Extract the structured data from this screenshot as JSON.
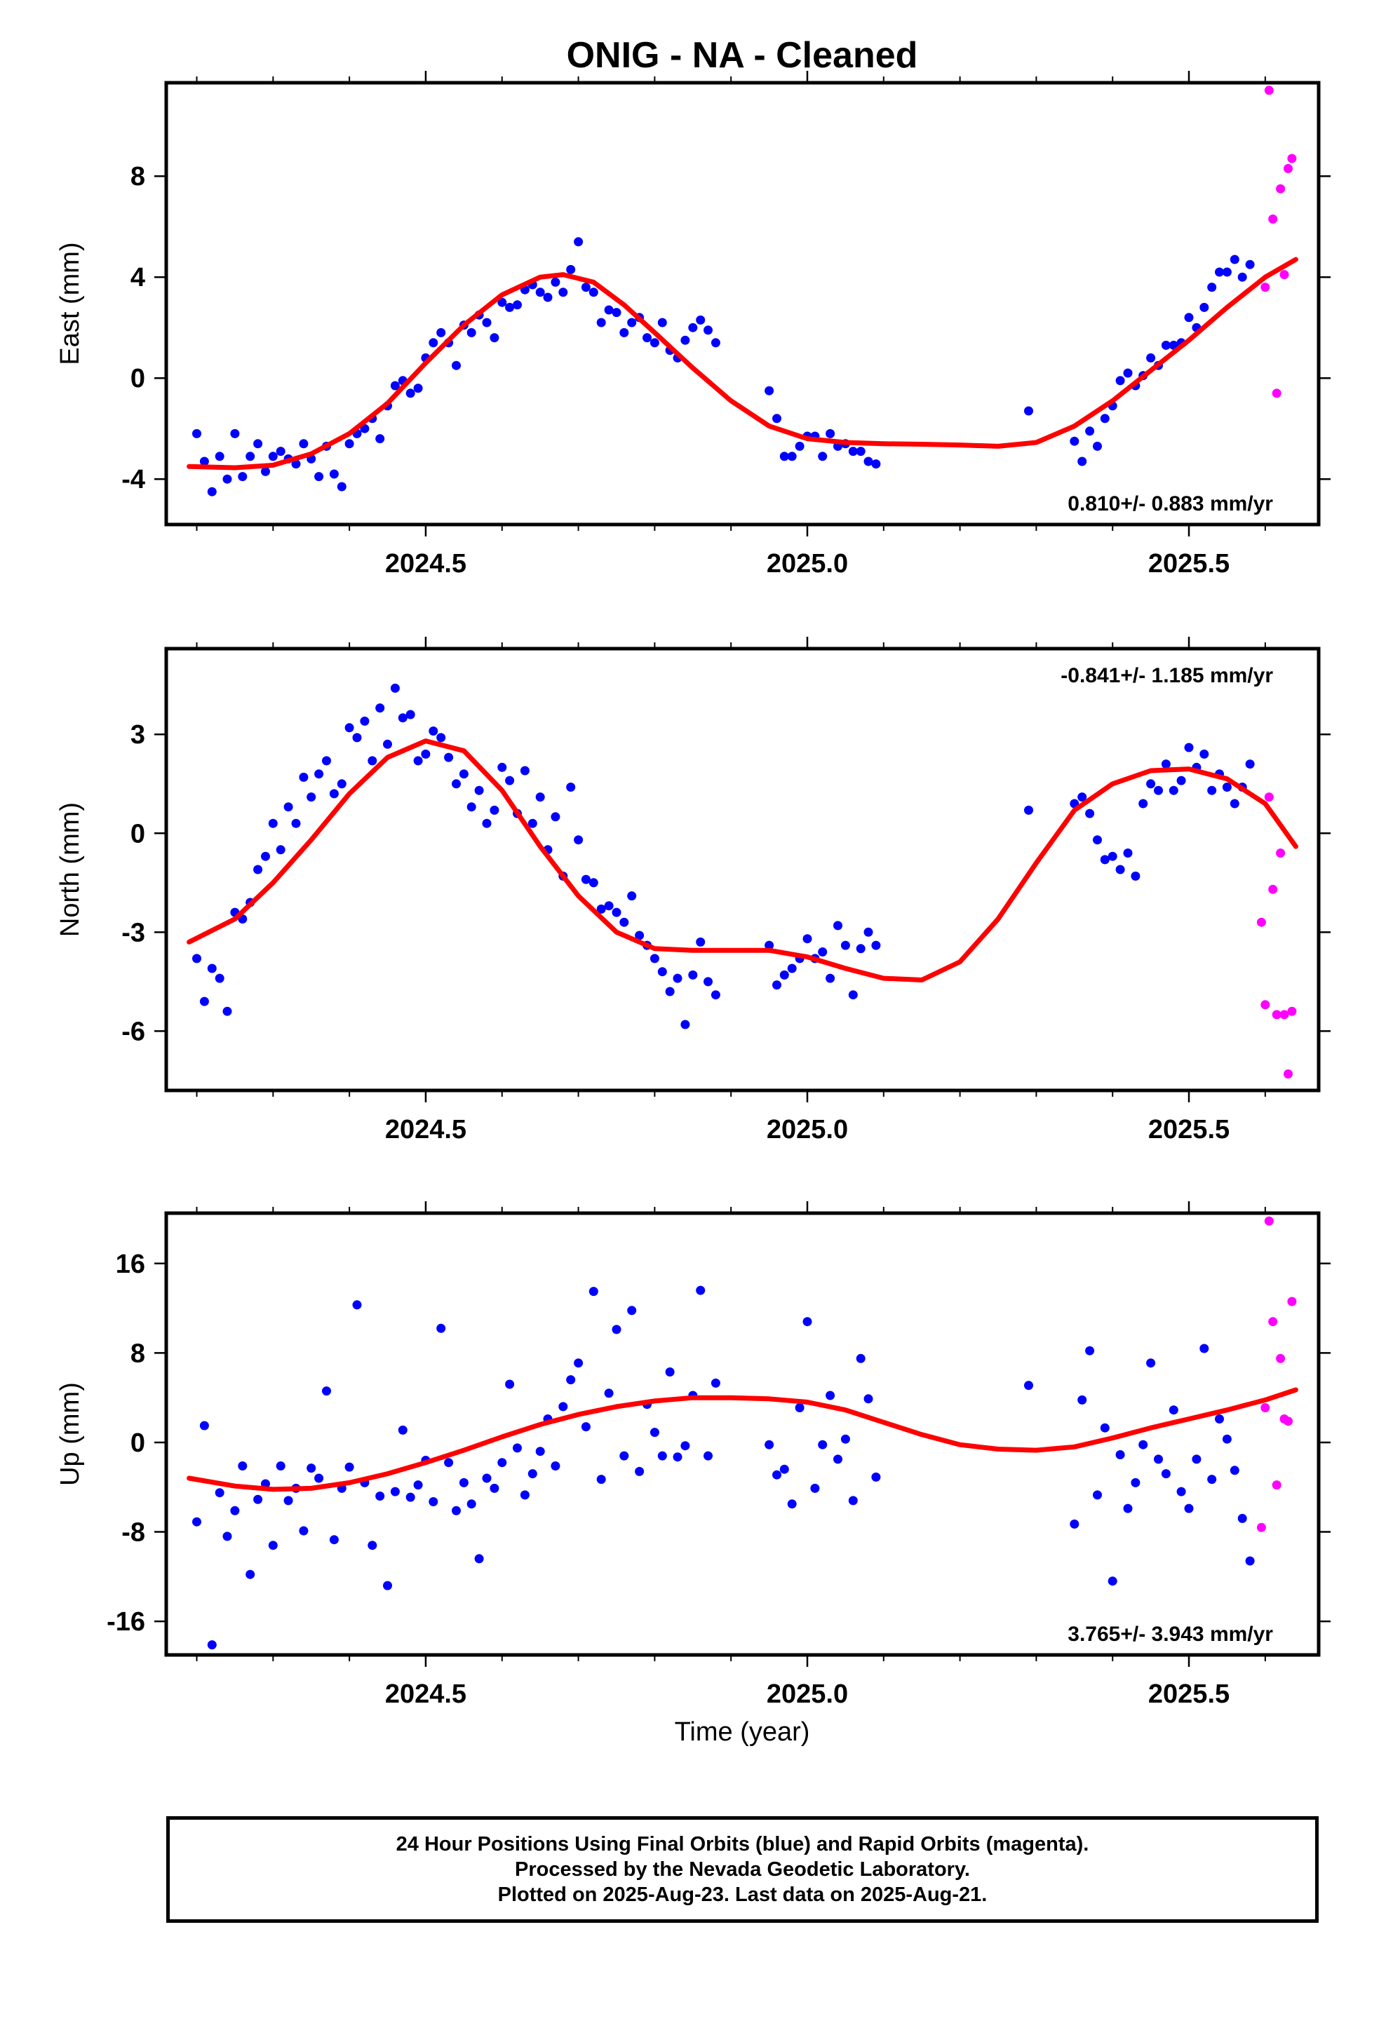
{
  "figure": {
    "title": "ONIG  - NA - Cleaned",
    "xlabel": "Time (year)",
    "colors": {
      "final": "#0000ff",
      "rapid": "#ff00ff",
      "model": "#ff0000",
      "axes": "#000000"
    }
  },
  "footer": {
    "line1": "24 Hour Positions Using Final Orbits (blue) and Rapid Orbits (magenta).",
    "line2": "Processed by the Nevada Geodetic Laboratory.",
    "line3": "Plotted on 2025-Aug-23. Last data on 2025-Aug-21."
  },
  "chart_data": [
    {
      "type": "scatter",
      "title": "ONIG  - NA - Cleaned",
      "ylabel": "East (mm)",
      "xlim": [
        2024.16,
        2025.67
      ],
      "ylim": [
        -5.8,
        11.7
      ],
      "xticks": [
        "2024.5",
        "2025.0",
        "2025.5"
      ],
      "yticks": [
        "-4",
        "0",
        "4",
        "8"
      ],
      "rate_text": "0.810+/- 0.883 mm/yr",
      "rate_position": "bottom-right",
      "series": [
        {
          "kind": "final",
          "x": [
            2024.2,
            2024.21,
            2024.22,
            2024.23,
            2024.24,
            2024.25,
            2024.26,
            2024.27,
            2024.28,
            2024.29,
            2024.3,
            2024.31,
            2024.32,
            2024.33,
            2024.34,
            2024.35,
            2024.36,
            2024.37,
            2024.38,
            2024.39,
            2024.4,
            2024.41,
            2024.42,
            2024.43,
            2024.44,
            2024.45,
            2024.46,
            2024.47,
            2024.48,
            2024.49,
            2024.5,
            2024.51,
            2024.52,
            2024.53,
            2024.54,
            2024.55,
            2024.56,
            2024.57,
            2024.58,
            2024.59,
            2024.6,
            2024.61,
            2024.62,
            2024.63,
            2024.64,
            2024.65,
            2024.66,
            2024.67,
            2024.68,
            2024.69,
            2024.7,
            2024.71,
            2024.72,
            2024.73,
            2024.74,
            2024.75,
            2024.76,
            2024.77,
            2024.78,
            2024.79,
            2024.8,
            2024.81,
            2024.82,
            2024.83,
            2024.84,
            2024.85,
            2024.86,
            2024.87,
            2024.88,
            2024.95,
            2024.96,
            2024.97,
            2024.98,
            2024.99,
            2025.0,
            2025.01,
            2025.02,
            2025.03,
            2025.04,
            2025.05,
            2025.06,
            2025.07,
            2025.08,
            2025.09,
            2025.29,
            2025.35,
            2025.36,
            2025.37,
            2025.38,
            2025.39,
            2025.4,
            2025.41,
            2025.42,
            2025.43,
            2025.44,
            2025.45,
            2025.46,
            2025.47,
            2025.48,
            2025.49,
            2025.5,
            2025.51,
            2025.52,
            2025.53,
            2025.54,
            2025.55,
            2025.56,
            2025.57,
            2025.58
          ],
          "y": [
            -2.2,
            -3.3,
            -4.5,
            -3.1,
            -4,
            -2.2,
            -3.9,
            -3.1,
            -2.6,
            -3.7,
            -3.1,
            -2.9,
            -3.2,
            -3.4,
            -2.6,
            -3.2,
            -3.9,
            -2.7,
            -3.8,
            -4.3,
            -2.6,
            -2.2,
            -2,
            -1.6,
            -2.4,
            -1.1,
            -0.3,
            -0.1,
            -0.6,
            -0.4,
            0.8,
            1.4,
            1.8,
            1.4,
            0.5,
            2.1,
            1.8,
            2.5,
            2.2,
            1.6,
            3,
            2.8,
            2.9,
            3.5,
            3.7,
            3.4,
            3.2,
            3.8,
            3.4,
            4.3,
            5.4,
            3.6,
            3.4,
            2.2,
            2.7,
            2.6,
            1.8,
            2.2,
            2.4,
            1.6,
            1.4,
            2.2,
            1.1,
            0.8,
            1.5,
            2,
            2.3,
            1.9,
            1.4,
            -0.5,
            -1.6,
            -3.1,
            -3.1,
            -2.7,
            -2.3,
            -2.3,
            -3.1,
            -2.2,
            -2.7,
            -2.6,
            -2.9,
            -2.9,
            -3.3,
            -3.4,
            -1.3,
            -2.5,
            -3.3,
            -2.1,
            -2.7,
            -1.6,
            -1.1,
            -0.1,
            0.2,
            -0.3,
            0.1,
            0.8,
            0.5,
            1.3,
            1.3,
            1.4,
            2.4,
            2,
            2.8,
            3.6,
            4.2,
            4.2,
            4.7,
            4,
            4.5
          ]
        },
        {
          "kind": "rapid",
          "x": [
            2025.6,
            2025.605,
            2025.61,
            2025.615,
            2025.62,
            2025.625,
            2025.63,
            2025.635
          ],
          "y": [
            3.6,
            11.4,
            6.3,
            -0.6,
            7.5,
            4.1,
            8.3,
            8.7
          ]
        },
        {
          "kind": "model",
          "x": [
            2024.19,
            2024.25,
            2024.3,
            2024.35,
            2024.4,
            2024.45,
            2024.5,
            2024.55,
            2024.6,
            2024.65,
            2024.68,
            2024.72,
            2024.76,
            2024.8,
            2024.85,
            2024.9,
            2024.95,
            2025.0,
            2025.05,
            2025.1,
            2025.15,
            2025.2,
            2025.25,
            2025.3,
            2025.35,
            2025.4,
            2025.45,
            2025.5,
            2025.55,
            2025.6,
            2025.64
          ],
          "y": [
            -3.5,
            -3.55,
            -3.45,
            -3.0,
            -2.2,
            -1.0,
            0.6,
            2.1,
            3.3,
            4.0,
            4.1,
            3.8,
            2.9,
            1.8,
            0.4,
            -0.9,
            -1.9,
            -2.4,
            -2.55,
            -2.6,
            -2.62,
            -2.65,
            -2.7,
            -2.55,
            -1.9,
            -0.9,
            0.3,
            1.5,
            2.8,
            4.0,
            4.7
          ]
        }
      ]
    },
    {
      "type": "scatter",
      "ylabel": "North (mm)",
      "xlim": [
        2024.16,
        2025.67
      ],
      "ylim": [
        -7.8,
        5.6
      ],
      "xticks": [
        "2024.5",
        "2025.0",
        "2025.5"
      ],
      "yticks": [
        "-6",
        "-3",
        "0",
        "3"
      ],
      "rate_text": "-0.841+/- 1.185 mm/yr",
      "rate_position": "top-right",
      "series": [
        {
          "kind": "final",
          "x": [
            2024.2,
            2024.21,
            2024.22,
            2024.23,
            2024.24,
            2024.25,
            2024.26,
            2024.27,
            2024.28,
            2024.29,
            2024.3,
            2024.31,
            2024.32,
            2024.33,
            2024.34,
            2024.35,
            2024.36,
            2024.37,
            2024.38,
            2024.39,
            2024.4,
            2024.41,
            2024.42,
            2024.43,
            2024.44,
            2024.45,
            2024.46,
            2024.47,
            2024.48,
            2024.49,
            2024.5,
            2024.51,
            2024.52,
            2024.53,
            2024.54,
            2024.55,
            2024.56,
            2024.57,
            2024.58,
            2024.59,
            2024.6,
            2024.61,
            2024.62,
            2024.63,
            2024.64,
            2024.65,
            2024.66,
            2024.67,
            2024.68,
            2024.69,
            2024.7,
            2024.71,
            2024.72,
            2024.73,
            2024.74,
            2024.75,
            2024.76,
            2024.77,
            2024.78,
            2024.79,
            2024.8,
            2024.81,
            2024.82,
            2024.83,
            2024.84,
            2024.85,
            2024.86,
            2024.87,
            2024.88,
            2024.95,
            2024.96,
            2024.97,
            2024.98,
            2024.99,
            2025.0,
            2025.01,
            2025.02,
            2025.03,
            2025.04,
            2025.05,
            2025.06,
            2025.07,
            2025.08,
            2025.09,
            2025.29,
            2025.35,
            2025.36,
            2025.37,
            2025.38,
            2025.39,
            2025.4,
            2025.41,
            2025.42,
            2025.43,
            2025.44,
            2025.45,
            2025.46,
            2025.47,
            2025.48,
            2025.49,
            2025.5,
            2025.51,
            2025.52,
            2025.53,
            2025.54,
            2025.55,
            2025.56,
            2025.57,
            2025.58
          ],
          "y": [
            -3.8,
            -5.1,
            -4.1,
            -4.4,
            -5.4,
            -2.4,
            -2.6,
            -2.1,
            -1.1,
            -0.7,
            0.3,
            -0.5,
            0.8,
            0.3,
            1.7,
            1.1,
            1.8,
            2.2,
            1.2,
            1.5,
            3.2,
            2.9,
            3.4,
            2.2,
            3.8,
            2.7,
            4.4,
            3.5,
            3.6,
            2.2,
            2.4,
            3.1,
            2.9,
            2.3,
            1.5,
            1.8,
            0.8,
            1.3,
            0.3,
            0.7,
            2,
            1.6,
            0.6,
            1.9,
            0.3,
            1.1,
            -0.5,
            0.5,
            -1.3,
            1.4,
            -0.2,
            -1.4,
            -1.5,
            -2.3,
            -2.2,
            -2.4,
            -2.7,
            -1.9,
            -3.1,
            -3.4,
            -3.8,
            -4.2,
            -4.8,
            -4.4,
            -5.8,
            -4.3,
            -3.3,
            -4.5,
            -4.9,
            -3.4,
            -4.6,
            -4.3,
            -4.1,
            -3.8,
            -3.2,
            -3.8,
            -3.6,
            -4.4,
            -2.8,
            -3.4,
            -4.9,
            -3.5,
            -3,
            -3.4,
            0.7,
            0.9,
            1.1,
            0.6,
            -0.2,
            -0.8,
            -0.7,
            -1.1,
            -0.6,
            -1.3,
            0.9,
            1.5,
            1.3,
            2.1,
            1.3,
            1.6,
            2.6,
            2,
            2.4,
            1.3,
            1.8,
            1.4,
            0.9,
            1.4,
            2.1
          ]
        },
        {
          "kind": "rapid",
          "x": [
            2025.595,
            2025.6,
            2025.605,
            2025.61,
            2025.615,
            2025.62,
            2025.625,
            2025.63,
            2025.635
          ],
          "y": [
            -2.7,
            -5.2,
            1.1,
            -1.7,
            -5.5,
            -0.6,
            -5.5,
            -7.3,
            -5.4
          ]
        },
        {
          "kind": "model",
          "x": [
            2024.19,
            2024.25,
            2024.3,
            2024.35,
            2024.4,
            2024.45,
            2024.5,
            2024.55,
            2024.6,
            2024.65,
            2024.7,
            2024.75,
            2024.8,
            2024.85,
            2024.9,
            2024.95,
            2025.0,
            2025.05,
            2025.1,
            2025.15,
            2025.2,
            2025.25,
            2025.3,
            2025.35,
            2025.4,
            2025.45,
            2025.5,
            2025.55,
            2025.6,
            2025.64
          ],
          "y": [
            -3.3,
            -2.6,
            -1.5,
            -0.2,
            1.2,
            2.3,
            2.8,
            2.5,
            1.3,
            -0.4,
            -1.9,
            -3.0,
            -3.5,
            -3.55,
            -3.55,
            -3.55,
            -3.75,
            -4.1,
            -4.4,
            -4.45,
            -3.9,
            -2.6,
            -0.9,
            0.7,
            1.5,
            1.9,
            1.95,
            1.65,
            0.9,
            -0.4
          ]
        }
      ]
    },
    {
      "type": "scatter",
      "ylabel": "Up (mm)",
      "xlabel": "Time (year)",
      "xlim": [
        2024.16,
        2025.67
      ],
      "ylim": [
        -19,
        20.5
      ],
      "xticks": [
        "2024.5",
        "2025.0",
        "2025.5"
      ],
      "yticks": [
        "-16",
        "-8",
        "0",
        "8",
        "16"
      ],
      "rate_text": "3.765+/- 3.943 mm/yr",
      "rate_position": "bottom-right",
      "series": [
        {
          "kind": "final",
          "x": [
            2024.2,
            2024.21,
            2024.22,
            2024.23,
            2024.24,
            2024.25,
            2024.26,
            2024.27,
            2024.28,
            2024.29,
            2024.3,
            2024.31,
            2024.32,
            2024.33,
            2024.34,
            2024.35,
            2024.36,
            2024.37,
            2024.38,
            2024.39,
            2024.4,
            2024.41,
            2024.42,
            2024.43,
            2024.44,
            2024.45,
            2024.46,
            2024.47,
            2024.48,
            2024.49,
            2024.5,
            2024.51,
            2024.52,
            2024.53,
            2024.54,
            2024.55,
            2024.56,
            2024.57,
            2024.58,
            2024.59,
            2024.6,
            2024.61,
            2024.62,
            2024.63,
            2024.64,
            2024.65,
            2024.66,
            2024.67,
            2024.68,
            2024.69,
            2024.7,
            2024.71,
            2024.72,
            2024.73,
            2024.74,
            2024.75,
            2024.76,
            2024.77,
            2024.78,
            2024.79,
            2024.8,
            2024.81,
            2024.82,
            2024.83,
            2024.84,
            2024.85,
            2024.86,
            2024.87,
            2024.88,
            2024.95,
            2024.96,
            2024.97,
            2024.98,
            2024.99,
            2025.0,
            2025.01,
            2025.02,
            2025.03,
            2025.04,
            2025.05,
            2025.06,
            2025.07,
            2025.08,
            2025.09,
            2025.29,
            2025.35,
            2025.36,
            2025.37,
            2025.38,
            2025.39,
            2025.4,
            2025.41,
            2025.42,
            2025.43,
            2025.44,
            2025.45,
            2025.46,
            2025.47,
            2025.48,
            2025.49,
            2025.5,
            2025.51,
            2025.52,
            2025.53,
            2025.54,
            2025.55,
            2025.56,
            2025.57,
            2025.58
          ],
          "y": [
            -7.1,
            1.5,
            -18.1,
            -4.5,
            -8.4,
            -6.1,
            -2.1,
            -11.8,
            -5.1,
            -3.7,
            -9.2,
            -2.1,
            -5.2,
            -4.1,
            -7.9,
            -2.3,
            -3.2,
            4.6,
            -8.7,
            -4.1,
            -2.2,
            12.3,
            -3.6,
            -9.2,
            -4.8,
            -12.8,
            -4.4,
            1.1,
            -4.9,
            -3.8,
            -1.6,
            -5.3,
            10.2,
            -1.8,
            -6.1,
            -3.6,
            -5.5,
            -10.4,
            -3.2,
            -4.1,
            -1.8,
            5.2,
            -0.5,
            -4.7,
            -2.8,
            -0.8,
            2.1,
            -2.1,
            3.2,
            5.6,
            7.1,
            1.4,
            13.5,
            -3.3,
            4.4,
            10.1,
            -1.2,
            11.8,
            -2.6,
            3.4,
            0.9,
            -1.2,
            6.3,
            -1.3,
            -0.3,
            4.2,
            13.6,
            -1.2,
            5.3,
            -0.2,
            -2.9,
            -2.4,
            -5.5,
            3.1,
            10.8,
            -4.1,
            -0.2,
            4.2,
            -1.5,
            0.3,
            -5.2,
            7.5,
            3.9,
            -3.1,
            5.1,
            -7.3,
            3.8,
            8.2,
            -4.7,
            1.3,
            -12.4,
            -1.1,
            -5.9,
            -3.6,
            -0.2,
            7.1,
            -1.5,
            -2.8,
            2.9,
            -4.4,
            -5.9,
            -1.5,
            8.4,
            -3.3,
            2.1,
            0.3,
            -2.5,
            -6.8,
            -10.6
          ]
        },
        {
          "kind": "rapid",
          "x": [
            2025.595,
            2025.6,
            2025.605,
            2025.61,
            2025.615,
            2025.62,
            2025.625,
            2025.63,
            2025.635
          ],
          "y": [
            -7.6,
            3.1,
            19.8,
            10.8,
            -3.8,
            7.5,
            2.1,
            1.9,
            12.6
          ]
        },
        {
          "kind": "model",
          "x": [
            2024.19,
            2024.25,
            2024.3,
            2024.35,
            2024.4,
            2024.45,
            2024.5,
            2024.55,
            2024.6,
            2024.65,
            2024.7,
            2024.75,
            2024.8,
            2024.85,
            2024.9,
            2024.95,
            2025.0,
            2025.05,
            2025.1,
            2025.15,
            2025.2,
            2025.25,
            2025.3,
            2025.35,
            2025.4,
            2025.45,
            2025.5,
            2025.55,
            2025.6,
            2025.64
          ],
          "y": [
            -3.2,
            -3.9,
            -4.2,
            -4.1,
            -3.6,
            -2.8,
            -1.8,
            -0.7,
            0.5,
            1.6,
            2.5,
            3.2,
            3.7,
            4.0,
            4.0,
            3.9,
            3.6,
            2.9,
            1.8,
            0.7,
            -0.2,
            -0.6,
            -0.7,
            -0.4,
            0.4,
            1.3,
            2.1,
            2.9,
            3.8,
            4.7
          ]
        }
      ]
    }
  ]
}
